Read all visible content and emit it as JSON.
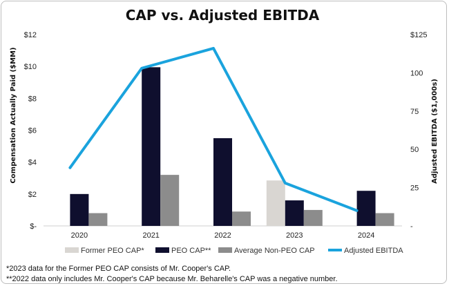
{
  "chart_data": {
    "type": "bar",
    "title": "CAP vs. Adjusted EBITDA",
    "categories": [
      "2020",
      "2021",
      "2022",
      "2023",
      "2024"
    ],
    "ylabel": "Compensation Actually Paid ($MM)",
    "y2label": "Adjusted EBITDA ($1,000s)",
    "ylim": [
      0,
      12
    ],
    "y2lim": [
      0,
      125
    ],
    "yticks": [
      "$-",
      "$2",
      "$4",
      "$6",
      "$8",
      "$10",
      "$12"
    ],
    "y2ticks": [
      "-",
      "25",
      "50",
      "75",
      "100",
      "$125"
    ],
    "series": [
      {
        "name": "Former PEO CAP*",
        "type": "bar",
        "axis": "left",
        "color": "#d9d6d2",
        "values": [
          null,
          null,
          null,
          2.85,
          null
        ]
      },
      {
        "name": "PEO CAP**",
        "type": "bar",
        "axis": "left",
        "color": "#0f0f2e",
        "values": [
          2.0,
          9.95,
          5.5,
          1.6,
          2.2
        ]
      },
      {
        "name": "Average Non-PEO CAP",
        "type": "bar",
        "axis": "left",
        "color": "#8c8c8c",
        "values": [
          0.8,
          3.2,
          0.9,
          1.0,
          0.8
        ]
      },
      {
        "name": "Adjusted EBITDA",
        "type": "line",
        "axis": "right",
        "color": "#1aa3dd",
        "values": [
          38,
          103,
          116,
          28,
          10
        ]
      }
    ],
    "legend_position": "bottom",
    "grid": false
  },
  "footnotes": [
    "*2023 data for the Former PEO CAP consists of Mr. Cooper's CAP.",
    "**2022 data only includes Mr. Cooper's CAP because Mr. Beharelle's CAP was a negative number."
  ]
}
